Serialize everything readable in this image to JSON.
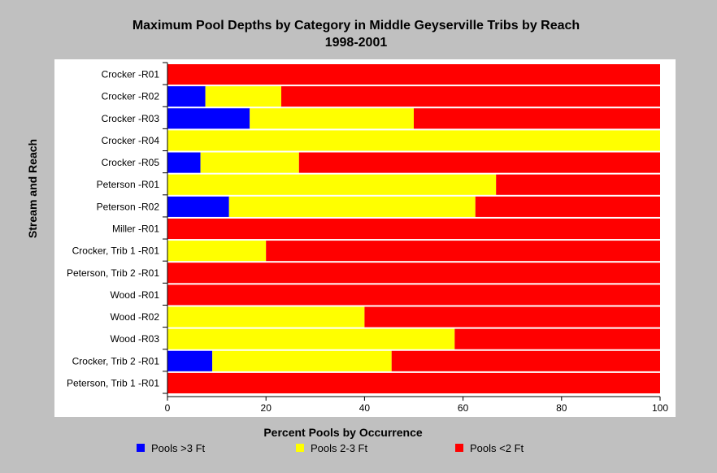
{
  "chart_data": {
    "type": "bar",
    "orientation": "horizontal",
    "stacked": true,
    "title": "Maximum Pool Depths by Category in Middle Geyserville Tribs by Reach",
    "subtitle": "1998-2001",
    "xlabel": "Percent Pools by Occurrence",
    "ylabel": "Stream and Reach",
    "xlim": [
      0,
      100
    ],
    "xticks": [
      "0",
      "20",
      "40",
      "60",
      "80",
      "100"
    ],
    "grid": false,
    "legend_position": "bottom",
    "categories": [
      "Crocker -R01",
      "Crocker -R02",
      "Crocker -R03",
      "Crocker -R04",
      "Crocker -R05",
      "Peterson -R01",
      "Peterson -R02",
      "Miller -R01",
      "Crocker, Trib 1 -R01",
      "Peterson, Trib 2 -R01",
      "Wood -R01",
      "Wood -R02",
      "Wood -R03",
      "Crocker, Trib 2 -R01",
      "Peterson, Trib 1 -R01"
    ],
    "series": [
      {
        "name": "Pools >3 Ft",
        "color": "#0000ff",
        "values": [
          0,
          7.7,
          16.7,
          0,
          6.7,
          0,
          12.5,
          0,
          0,
          0,
          0,
          0,
          0,
          9.1,
          0
        ]
      },
      {
        "name": "Pools 2-3 Ft",
        "color": "#ffff00",
        "values": [
          0,
          15.4,
          33.3,
          100,
          20,
          66.7,
          50,
          0,
          20,
          0,
          0,
          40,
          58.3,
          36.4,
          0
        ]
      },
      {
        "name": "Pools <2 Ft",
        "color": "#ff0000",
        "values": [
          100,
          76.9,
          50,
          0,
          73.3,
          33.3,
          37.5,
          100,
          80,
          100,
          100,
          60,
          41.7,
          54.5,
          100
        ]
      }
    ]
  }
}
